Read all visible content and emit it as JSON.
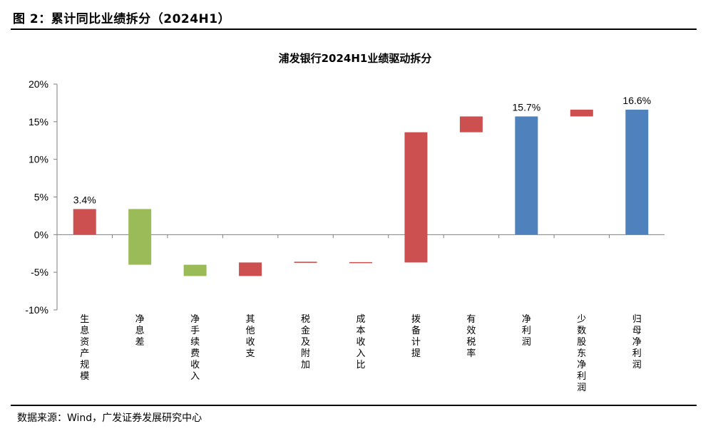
{
  "figure": {
    "title": "图 2：累计同比业绩拆分（2024H1）",
    "source": "数据来源：Wind，广发证券发展研究中心"
  },
  "chart_data": {
    "type": "bar",
    "subtype": "waterfall",
    "title": "浦发银行2024H1业绩驱动拆分",
    "xlabel": "",
    "ylabel": "",
    "ylim": [
      -10,
      20
    ],
    "yticks": [
      "20%",
      "15%",
      "10%",
      "5%",
      "0%",
      "-5%",
      "-10%"
    ],
    "grid": false,
    "legend": "none",
    "colors": {
      "positive": "#cd5050",
      "green": "#9bbb59",
      "total": "#4f81bd"
    },
    "categories": [
      "生息资产规模",
      "净息差",
      "净手续费收入",
      "其他收支",
      "税金及附加",
      "成本收入比",
      "拨备计提",
      "有效税率",
      "净利润",
      "少数股东净利润",
      "归母净利润"
    ],
    "bars": [
      {
        "category": "生息资产规模",
        "low": 0,
        "high": 3.4,
        "kind": "positive",
        "label": "3.4%"
      },
      {
        "category": "净息差",
        "low": -4.0,
        "high": 3.4,
        "kind": "green",
        "label": ""
      },
      {
        "category": "净手续费收入",
        "low": -5.5,
        "high": -4.0,
        "kind": "green",
        "label": ""
      },
      {
        "category": "其他收支",
        "low": -5.5,
        "high": -3.7,
        "kind": "positive",
        "label": ""
      },
      {
        "category": "税金及附加",
        "low": -3.75,
        "high": -3.6,
        "kind": "positive",
        "label": ""
      },
      {
        "category": "成本收入比",
        "low": -3.75,
        "high": -3.65,
        "kind": "positive",
        "label": ""
      },
      {
        "category": "拨备计提",
        "low": -3.7,
        "high": 13.6,
        "kind": "positive",
        "label": ""
      },
      {
        "category": "有效税率",
        "low": 13.6,
        "high": 15.7,
        "kind": "positive",
        "label": ""
      },
      {
        "category": "净利润",
        "low": 0,
        "high": 15.7,
        "kind": "total",
        "label": "15.7%"
      },
      {
        "category": "少数股东净利润",
        "low": 15.7,
        "high": 16.6,
        "kind": "positive",
        "label": ""
      },
      {
        "category": "归母净利润",
        "low": 0,
        "high": 16.6,
        "kind": "total",
        "label": "16.6%"
      }
    ]
  }
}
